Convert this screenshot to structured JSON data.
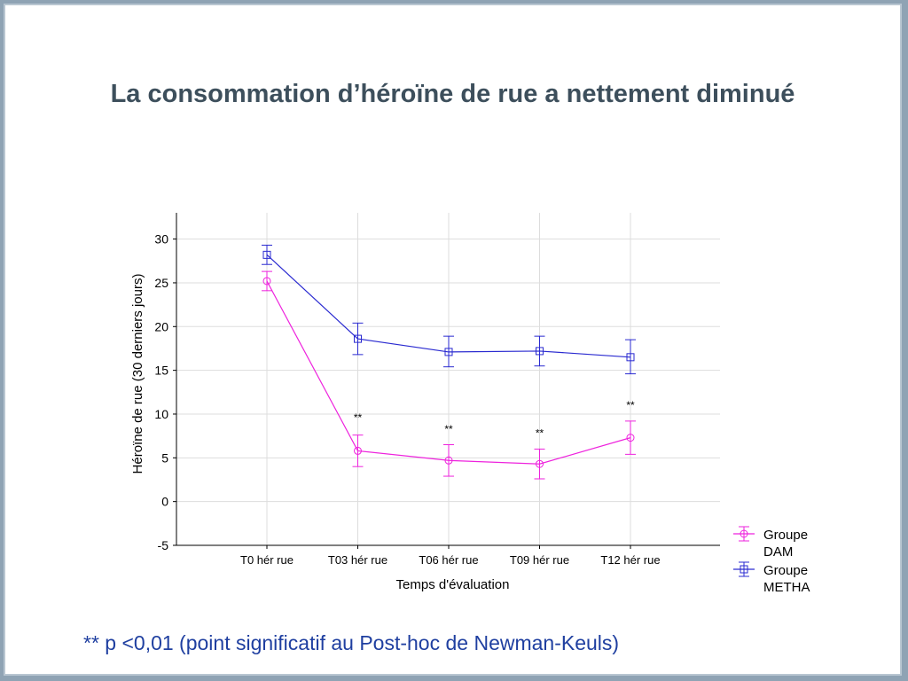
{
  "slide": {
    "title": "La consommation d’héroïne de rue a nettement diminué",
    "footnote": "** p <0,01 (point significatif au Post-hoc de Newman-Keuls)"
  },
  "chart_data": {
    "type": "line",
    "xlabel": "Temps d'évaluation",
    "ylabel": "Héroïne de rue (30 derniers jours)",
    "categories": [
      "T0 hér rue",
      "T03 hér rue",
      "T06 hér rue",
      "T09 hér rue",
      "T12 hér rue"
    ],
    "ylim": [
      -5,
      33
    ],
    "yticks": [
      -5,
      0,
      5,
      10,
      15,
      20,
      25,
      30
    ],
    "grid": true,
    "legend_position": "bottom-right",
    "series": [
      {
        "name": "Groupe DAM",
        "legend_lines": [
          "Groupe",
          "DAM"
        ],
        "color": "#ee22dd",
        "marker": "circle",
        "values": [
          25.2,
          5.8,
          4.7,
          4.3,
          7.3
        ],
        "err_low": [
          24.1,
          4.0,
          2.9,
          2.6,
          5.4
        ],
        "err_high": [
          26.3,
          7.6,
          6.5,
          6.0,
          9.2
        ]
      },
      {
        "name": "Groupe METHA",
        "legend_lines": [
          "Groupe",
          "METHA"
        ],
        "color": "#2a2ad0",
        "marker": "square",
        "values": [
          28.2,
          18.6,
          17.1,
          17.2,
          16.5
        ],
        "err_low": [
          27.1,
          16.8,
          15.4,
          15.5,
          14.6
        ],
        "err_high": [
          29.3,
          20.4,
          18.9,
          18.9,
          18.5
        ]
      }
    ],
    "annotations": [
      {
        "category_index": 1,
        "y": 9.6,
        "text": "**"
      },
      {
        "category_index": 2,
        "y": 8.3,
        "text": "**"
      },
      {
        "category_index": 3,
        "y": 7.8,
        "text": "**"
      },
      {
        "category_index": 4,
        "y": 11.0,
        "text": "**"
      }
    ]
  }
}
